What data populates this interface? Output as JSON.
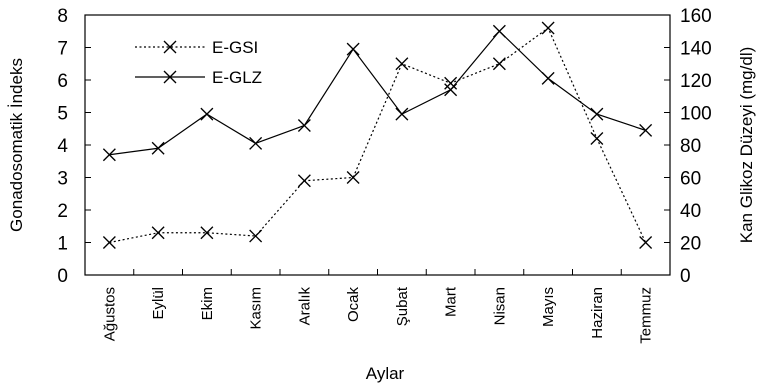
{
  "chart_data": {
    "type": "line",
    "xlabel": "Aylar",
    "ylabel": "Gonadosomatik İndeks",
    "y2label": "Kan Glikoz Düzeyi (mg/dl)",
    "categories": [
      "Ağustos",
      "Eylül",
      "Ekim",
      "Kasım",
      "Aralık",
      "Ocak",
      "Şubat",
      "Mart",
      "Nisan",
      "Mayıs",
      "Haziran",
      "Temmuz"
    ],
    "ylim": [
      0,
      8
    ],
    "yticks": [
      0,
      1,
      2,
      3,
      4,
      5,
      6,
      7,
      8
    ],
    "y2lim": [
      0,
      160
    ],
    "y2ticks": [
      0,
      20,
      40,
      60,
      80,
      100,
      120,
      140,
      160
    ],
    "legend_position": "top-left",
    "series": [
      {
        "name": "E-GSI",
        "axis": "left",
        "style": "dotted",
        "color": "#000000",
        "marker": "x",
        "values": [
          1.0,
          1.3,
          1.3,
          1.2,
          2.9,
          3.0,
          6.5,
          5.9,
          6.5,
          7.6,
          4.2,
          1.0
        ]
      },
      {
        "name": "E-GLZ",
        "axis": "right",
        "style": "solid",
        "color": "#000000",
        "marker": "x",
        "values": [
          74,
          78,
          99,
          81,
          92,
          139,
          99,
          114,
          150,
          121,
          99,
          89
        ]
      }
    ]
  }
}
